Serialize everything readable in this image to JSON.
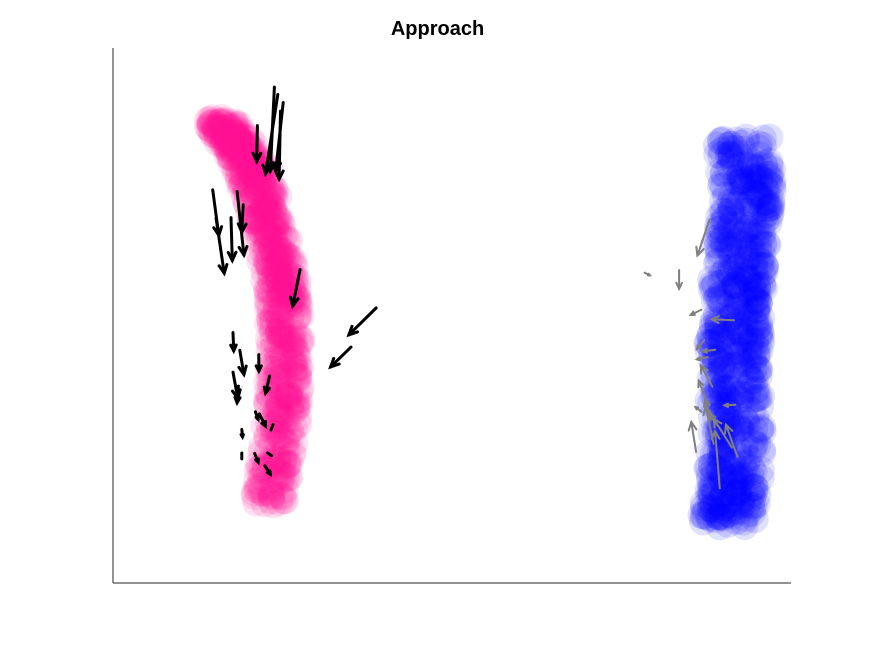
{
  "chart_data": {
    "type": "scatter",
    "title": "Approach",
    "xlabel": "",
    "ylabel": "",
    "xlim": [
      0,
      100
    ],
    "ylim": [
      0,
      100
    ],
    "grid": false,
    "axes": "left-bottom",
    "colors": {
      "group_a_points": "#ff1493",
      "group_a_arrows": "#000000",
      "group_b_points": "#0000ff",
      "group_b_arrows": "#808080"
    },
    "series": [
      {
        "kind": "point-cloud",
        "ridge": [
          [
            15.5,
            86.5
          ],
          [
            18.5,
            82
          ],
          [
            21,
            76
          ],
          [
            23,
            66
          ],
          [
            25,
            56
          ],
          [
            25.5,
            44
          ],
          [
            25,
            30
          ],
          [
            23,
            15
          ]
        ],
        "ridge_spread": 2.5
      },
      {
        "kind": "point-cloud",
        "ridge": [
          [
            93,
            83
          ],
          [
            93.5,
            72
          ],
          [
            92.5,
            62
          ],
          [
            92,
            52
          ],
          [
            91.5,
            42
          ],
          [
            92,
            30
          ],
          [
            91.5,
            19
          ],
          [
            90.5,
            11
          ]
        ],
        "ridge_spread": 4
      },
      {
        "kind": "arrows",
        "segments": [
          [
            24.3,
            91.3,
            22.5,
            76.5
          ],
          [
            23.8,
            92.7,
            23.2,
            77
          ],
          [
            25.1,
            89.8,
            24,
            77
          ],
          [
            24.7,
            88.2,
            24.5,
            75.5
          ],
          [
            21.3,
            85.5,
            21.2,
            78.8
          ],
          [
            18.3,
            73.2,
            19.3,
            61.3
          ],
          [
            14.7,
            73.5,
            15.6,
            65
          ],
          [
            19.2,
            70.7,
            19,
            65.6
          ],
          [
            17.4,
            68.3,
            17.6,
            60.3
          ],
          [
            15.2,
            68.2,
            16.4,
            57.9
          ],
          [
            27.6,
            58.6,
            26.5,
            51.8
          ],
          [
            38.8,
            51.4,
            34.8,
            46.4
          ],
          [
            35.1,
            44.1,
            32.1,
            40.4
          ],
          [
            17.7,
            46.8,
            17.8,
            43.4
          ],
          [
            18.7,
            43.5,
            19.3,
            39
          ],
          [
            21.5,
            42.7,
            21.5,
            39.6
          ],
          [
            17.7,
            39.4,
            18.4,
            34.5
          ],
          [
            23.1,
            38.7,
            22.5,
            35.5
          ],
          [
            18.5,
            36.8,
            18.3,
            33.7
          ],
          [
            21,
            32,
            21.4,
            30.6
          ],
          [
            21.6,
            31.6,
            22.5,
            29.3
          ],
          [
            23.6,
            29.6,
            23.3,
            28.6
          ],
          [
            19,
            28.7,
            19.1,
            27.3
          ],
          [
            20.9,
            24.2,
            21.4,
            22.6
          ],
          [
            22.8,
            24.3,
            23.4,
            23.8
          ],
          [
            19,
            24.3,
            19,
            23.2
          ],
          [
            22.4,
            21.9,
            23.2,
            20.3
          ]
        ]
      },
      {
        "kind": "arrows",
        "segments": [
          [
            88,
            68,
            86.2,
            61.2
          ],
          [
            78.4,
            58,
            79.2,
            57.5
          ],
          [
            83.5,
            58.5,
            83.5,
            55
          ],
          [
            86.8,
            51.1,
            85.2,
            50.1
          ],
          [
            91.6,
            49.1,
            88.3,
            49.3
          ],
          [
            87.2,
            45.4,
            86.1,
            43.7
          ],
          [
            88.8,
            43.6,
            87,
            43.3
          ],
          [
            87.7,
            42.2,
            86.1,
            41.8
          ],
          [
            88.4,
            36.7,
            86.7,
            40.7
          ],
          [
            87.4,
            34.6,
            86.4,
            37.8
          ],
          [
            88.3,
            30.6,
            87.3,
            34.3
          ],
          [
            88.6,
            26,
            87.4,
            33
          ],
          [
            91.8,
            33.3,
            90.2,
            33.2
          ],
          [
            86.8,
            32,
            85.9,
            32.9
          ],
          [
            86,
            24.5,
            85.3,
            30.1
          ],
          [
            91.3,
            25.3,
            88.6,
            30.7
          ],
          [
            89.8,
            28.4,
            87.8,
            31.7
          ],
          [
            89.5,
            17.7,
            88.8,
            28.4
          ],
          [
            92.1,
            23.6,
            90.4,
            29.6
          ]
        ]
      }
    ]
  }
}
